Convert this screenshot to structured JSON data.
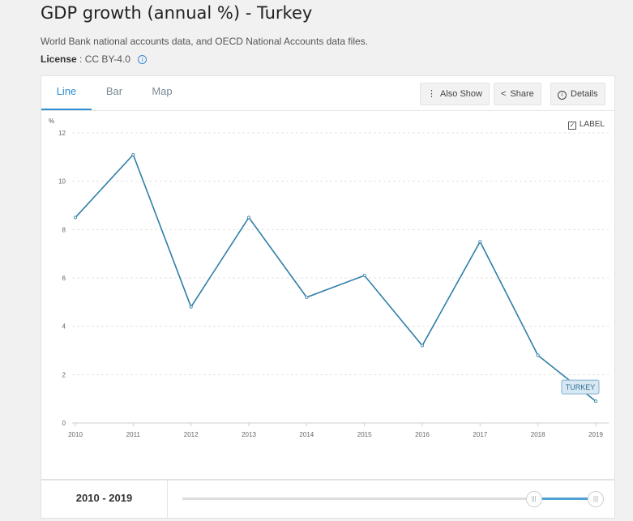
{
  "header": {
    "title": "GDP growth (annual %) - Turkey",
    "source": "World Bank national accounts data, and OECD National Accounts data files.",
    "license_label": "License",
    "license_value": ": CC BY-4.0",
    "info_glyph": "i"
  },
  "tabs": [
    {
      "label": "Line",
      "active": true
    },
    {
      "label": "Bar",
      "active": false
    },
    {
      "label": "Map",
      "active": false
    }
  ],
  "toolbar": {
    "also_show_label": "Also Show",
    "share_label": "Share",
    "details_label": "Details",
    "also_show_icon": "vertical-dots-icon",
    "share_icon": "share-icon",
    "details_icon": "info-icon"
  },
  "label_toggle": {
    "label": "LABEL",
    "checked": true
  },
  "chart_data": {
    "type": "line",
    "ylabel": "%",
    "x": [
      2010,
      2011,
      2012,
      2013,
      2014,
      2015,
      2016,
      2017,
      2018,
      2019
    ],
    "series": [
      {
        "name": "TURKEY",
        "values": [
          8.5,
          11.1,
          4.8,
          8.5,
          5.2,
          6.1,
          3.2,
          7.5,
          2.8,
          0.9
        ],
        "color": "#2f7fa8"
      }
    ],
    "ylim": [
      0,
      12
    ],
    "yticks": [
      0,
      2,
      4,
      6,
      8,
      10,
      12
    ],
    "grid": true
  },
  "range": {
    "label": "2010 - 2019",
    "start_fraction": 0.85,
    "end_fraction": 1.0,
    "handle_glyph": "|||"
  },
  "colors": {
    "accent": "#2e8ed0",
    "line": "#2f7fa8",
    "tooltip_bg": "#d8e8f3",
    "tooltip_border": "#7fb0d0"
  }
}
